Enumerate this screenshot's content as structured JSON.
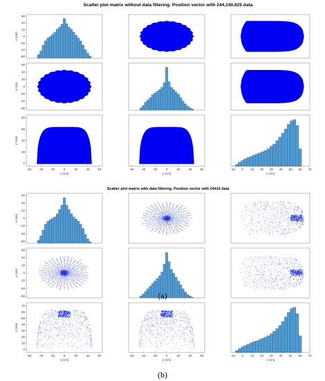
{
  "captions": {
    "a": "(a)",
    "b": "(b)"
  },
  "colors": {
    "bar_fill": "#4f9bd2",
    "bar_stroke": "#27507a",
    "scatter_dense": "#0000f5",
    "scatter_sparse": "#1f2fe6"
  },
  "chart_data": [
    {
      "type": "scatter",
      "title": "Scatter plot matrix without data filtering. Position vector with 244,140,625 data",
      "variables": [
        "x (cm)",
        "y (cm)",
        "z (cm)"
      ],
      "x_ticks": {
        "x": [
          -60,
          -40,
          -20,
          0,
          20,
          40,
          60
        ],
        "y": [
          -60,
          -40,
          -20,
          0,
          20,
          40,
          60
        ],
        "z": [
          -10,
          0,
          10,
          20,
          30,
          40,
          50,
          60,
          70
        ]
      },
      "y_ticks": {
        "x": [
          -60,
          -40,
          -20,
          0,
          20,
          40,
          60
        ],
        "y": [
          -60,
          -40,
          -20,
          0,
          20,
          40,
          60
        ],
        "z": [
          0,
          20,
          40,
          60,
          80
        ]
      },
      "xlim": {
        "x": [
          -65,
          65
        ],
        "y": [
          -65,
          65
        ],
        "z": [
          -12,
          70
        ]
      },
      "ylim": {
        "x": [
          -65,
          65
        ],
        "y": [
          -65,
          65
        ],
        "z": [
          -5,
          85
        ]
      },
      "histograms": {
        "x": {
          "bin_centers": [
            -44,
            -40,
            -36,
            -32,
            -28,
            -24,
            -20,
            -16,
            -12,
            -8,
            -4,
            0,
            4,
            8,
            12,
            16,
            20,
            24,
            28,
            32,
            36,
            40,
            44
          ],
          "counts": [
            5,
            10,
            18,
            24,
            28,
            30,
            33,
            36,
            40,
            43,
            47,
            55,
            48,
            43,
            40,
            36,
            32,
            28,
            24,
            18,
            12,
            7,
            3
          ]
        },
        "y": {
          "bin_centers": [
            -44,
            -40,
            -36,
            -32,
            -28,
            -24,
            -20,
            -16,
            -12,
            -8,
            -4,
            0,
            4,
            8,
            12,
            16,
            20,
            24,
            28,
            32,
            36,
            40,
            44
          ],
          "counts": [
            4,
            8,
            14,
            18,
            22,
            27,
            30,
            33,
            36,
            40,
            48,
            75,
            50,
            40,
            36,
            32,
            28,
            22,
            16,
            11,
            7,
            4,
            2
          ]
        },
        "z": {
          "bin_centers": [
            -6,
            -3,
            0,
            3,
            6,
            9,
            12,
            15,
            18,
            21,
            24,
            27,
            30,
            33,
            36,
            39,
            42,
            45,
            48,
            51,
            54,
            57,
            60
          ],
          "counts": [
            3,
            7,
            10,
            13,
            15,
            17,
            19,
            21,
            23,
            25,
            27,
            30,
            34,
            38,
            44,
            50,
            57,
            64,
            72,
            78,
            80,
            70,
            30
          ]
        }
      }
    },
    {
      "type": "scatter",
      "title": "Scatter plot matrix with data filtering. Position vector with 24414 data",
      "variables": [
        "x (cm)",
        "y (cm)",
        "z (cm)"
      ],
      "x_ticks": {
        "x": [
          -60,
          -40,
          -20,
          0,
          20,
          40,
          60
        ],
        "y": [
          -60,
          -40,
          -20,
          0,
          20,
          40,
          60
        ],
        "z": [
          -10,
          0,
          10,
          20,
          30,
          40,
          50,
          60,
          70
        ]
      },
      "y_ticks": {
        "x": [
          -60,
          -40,
          -20,
          0,
          20,
          40,
          60
        ],
        "y": [
          -60,
          -40,
          -20,
          0,
          20,
          40,
          60
        ],
        "z": [
          0,
          10,
          20,
          30,
          40,
          50,
          60,
          70
        ]
      },
      "xlim": {
        "x": [
          -65,
          65
        ],
        "y": [
          -65,
          65
        ],
        "z": [
          -12,
          70
        ]
      },
      "ylim": {
        "x": [
          -65,
          65
        ],
        "y": [
          -65,
          65
        ],
        "z": [
          -5,
          75
        ]
      },
      "histograms": {
        "x": {
          "bin_centers": [
            -44,
            -40,
            -36,
            -32,
            -28,
            -24,
            -20,
            -16,
            -12,
            -8,
            -4,
            0,
            4,
            8,
            12,
            16,
            20,
            24,
            28,
            32,
            36,
            40,
            44
          ],
          "counts": [
            4,
            10,
            18,
            26,
            30,
            32,
            34,
            36,
            40,
            46,
            52,
            62,
            52,
            46,
            40,
            36,
            33,
            30,
            26,
            20,
            12,
            6,
            2
          ]
        },
        "y": {
          "bin_centers": [
            -44,
            -40,
            -36,
            -32,
            -28,
            -24,
            -20,
            -16,
            -12,
            -8,
            -4,
            0,
            4,
            8,
            12,
            16,
            20,
            24,
            28,
            32,
            36,
            40,
            44
          ],
          "counts": [
            3,
            6,
            10,
            14,
            18,
            22,
            26,
            30,
            34,
            40,
            52,
            70,
            56,
            44,
            38,
            32,
            26,
            20,
            14,
            9,
            5,
            3,
            1
          ]
        },
        "z": {
          "bin_centers": [
            -6,
            -3,
            0,
            3,
            6,
            9,
            12,
            15,
            18,
            21,
            24,
            27,
            30,
            33,
            36,
            39,
            42,
            45,
            48,
            51,
            54,
            57,
            60
          ],
          "counts": [
            3,
            6,
            9,
            11,
            13,
            15,
            17,
            18,
            20,
            22,
            24,
            26,
            29,
            33,
            37,
            42,
            48,
            55,
            62,
            68,
            70,
            60,
            26
          ]
        }
      }
    }
  ]
}
